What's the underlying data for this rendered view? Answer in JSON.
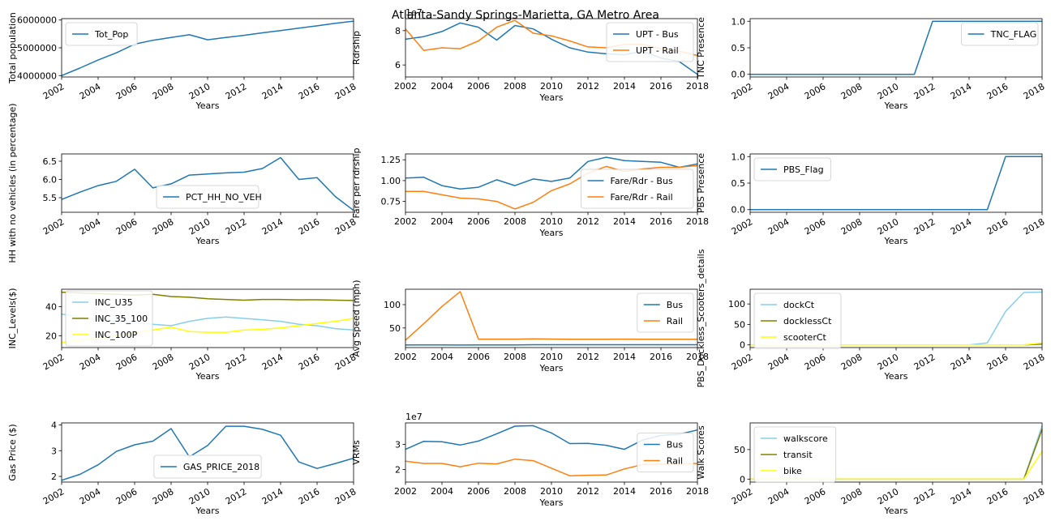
{
  "figure": {
    "title": "Atlanta-Sandy Springs-Marietta, GA Metro Area"
  },
  "chart_data": [
    {
      "id": "p1",
      "type": "line",
      "xlabel": "Years",
      "ylabel": "Total population",
      "xlim": [
        2002,
        2018
      ],
      "ylim": [
        3950000,
        6050000
      ],
      "xticks": [
        2002,
        2004,
        2006,
        2008,
        2010,
        2012,
        2014,
        2016,
        2018
      ],
      "xtick_rotate": true,
      "yticks": [
        4000000,
        5000000,
        6000000
      ],
      "ytick_labels": [
        "4000000",
        "5000000",
        "6000000"
      ],
      "exponent": "",
      "legend": "upper left",
      "x": [
        2002,
        2003,
        2004,
        2005,
        2006,
        2007,
        2008,
        2009,
        2010,
        2011,
        2012,
        2013,
        2014,
        2015,
        2016,
        2017,
        2018
      ],
      "series": [
        {
          "name": "Tot_Pop",
          "color": "#1f77b4",
          "values": [
            4000000,
            4270000,
            4560000,
            4820000,
            5130000,
            5270000,
            5370000,
            5470000,
            5290000,
            5370000,
            5450000,
            5540000,
            5620000,
            5710000,
            5790000,
            5880000,
            5960000
          ]
        }
      ]
    },
    {
      "id": "p2",
      "type": "line",
      "xlabel": "Years",
      "ylabel": "Rdrship",
      "xlim": [
        2002,
        2018
      ],
      "ylim": [
        5.3,
        8.7
      ],
      "xticks": [
        2002,
        2004,
        2006,
        2008,
        2010,
        2012,
        2014,
        2016,
        2018
      ],
      "xtick_rotate": false,
      "yticks": [
        6,
        8
      ],
      "ytick_labels": [
        "6",
        "8"
      ],
      "exponent": "1e7",
      "legend": "upper right",
      "x": [
        2002,
        2003,
        2004,
        2005,
        2006,
        2007,
        2008,
        2009,
        2010,
        2011,
        2012,
        2013,
        2014,
        2015,
        2016,
        2017,
        2018
      ],
      "series": [
        {
          "name": "UPT - Bus",
          "color": "#1f77b4",
          "values": [
            7.5,
            7.65,
            7.95,
            8.45,
            8.2,
            7.45,
            8.3,
            8.1,
            7.5,
            7.0,
            6.75,
            6.65,
            6.6,
            6.8,
            6.4,
            6.2,
            5.45
          ]
        },
        {
          "name": "UPT - Rail",
          "color": "#ff7f0e",
          "values": [
            8.1,
            6.85,
            7.0,
            6.95,
            7.4,
            8.2,
            8.6,
            7.85,
            7.7,
            7.4,
            7.05,
            7.0,
            7.2,
            7.2,
            6.95,
            6.8,
            6.55
          ]
        }
      ]
    },
    {
      "id": "p3",
      "type": "line",
      "xlabel": "Years",
      "ylabel": "TNC Presence",
      "xlim": [
        2002,
        2018
      ],
      "ylim": [
        -0.05,
        1.05
      ],
      "xticks": [
        2002,
        2004,
        2006,
        2008,
        2010,
        2012,
        2014,
        2016,
        2018
      ],
      "xtick_rotate": true,
      "yticks": [
        0,
        0.5,
        1.0
      ],
      "ytick_labels": [
        "0.0",
        "0.5",
        "1.0"
      ],
      "exponent": "",
      "legend": "upper right",
      "x": [
        2002,
        2003,
        2004,
        2005,
        2006,
        2007,
        2008,
        2009,
        2010,
        2011,
        2012,
        2013,
        2014,
        2015,
        2016,
        2017,
        2018
      ],
      "series": [
        {
          "name": "TNC_FLAG",
          "color": "#1f77b4",
          "values": [
            0,
            0,
            0,
            0,
            0,
            0,
            0,
            0,
            0,
            0,
            1,
            1,
            1,
            1,
            1,
            1,
            1
          ]
        }
      ]
    },
    {
      "id": "p4",
      "type": "line",
      "xlabel": "Years",
      "ylabel": "HH with no vehicles (in percentage)",
      "xlim": [
        2002,
        2018
      ],
      "ylim": [
        5.1,
        6.7
      ],
      "xticks": [
        2002,
        2004,
        2006,
        2008,
        2010,
        2012,
        2014,
        2016,
        2018
      ],
      "xtick_rotate": true,
      "yticks": [
        5.5,
        6.0,
        6.5
      ],
      "ytick_labels": [
        "5.5",
        "6.0",
        "6.5"
      ],
      "exponent": "",
      "legend": "lower center",
      "x": [
        2002,
        2003,
        2004,
        2005,
        2006,
        2007,
        2008,
        2009,
        2010,
        2011,
        2012,
        2013,
        2014,
        2015,
        2016,
        2017,
        2018
      ],
      "series": [
        {
          "name": "PCT_HH_NO_VEH",
          "color": "#1f77b4",
          "values": [
            5.45,
            5.65,
            5.83,
            5.95,
            6.28,
            5.77,
            5.88,
            6.12,
            6.15,
            6.18,
            6.2,
            6.3,
            6.6,
            6.0,
            6.05,
            5.53,
            5.15
          ]
        }
      ]
    },
    {
      "id": "p5",
      "type": "line",
      "xlabel": "Years",
      "ylabel": "Fare per rdrship",
      "xlim": [
        2002,
        2018
      ],
      "ylim": [
        0.62,
        1.32
      ],
      "xticks": [
        2002,
        2004,
        2006,
        2008,
        2010,
        2012,
        2014,
        2016,
        2018
      ],
      "xtick_rotate": false,
      "yticks": [
        0.75,
        1.0,
        1.25
      ],
      "ytick_labels": [
        "0.75",
        "1.00",
        "1.25"
      ],
      "exponent": "",
      "legend": "lower right",
      "x": [
        2002,
        2003,
        2004,
        2005,
        2006,
        2007,
        2008,
        2009,
        2010,
        2011,
        2012,
        2013,
        2014,
        2015,
        2016,
        2017,
        2018
      ],
      "series": [
        {
          "name": "Fare/Rdr - Bus",
          "color": "#1f77b4",
          "values": [
            1.03,
            1.04,
            0.94,
            0.9,
            0.92,
            1.01,
            0.94,
            1.02,
            0.99,
            1.03,
            1.23,
            1.28,
            1.24,
            1.23,
            1.22,
            1.16,
            1.2
          ]
        },
        {
          "name": "Fare/Rdr - Rail",
          "color": "#ff7f0e",
          "values": [
            0.87,
            0.87,
            0.83,
            0.79,
            0.78,
            0.75,
            0.66,
            0.74,
            0.88,
            0.96,
            1.09,
            1.17,
            1.11,
            1.14,
            1.16,
            1.16,
            1.18
          ]
        }
      ]
    },
    {
      "id": "p6",
      "type": "line",
      "xlabel": "Years",
      "ylabel": "PBS Presence",
      "xlim": [
        2002,
        2018
      ],
      "ylim": [
        -0.05,
        1.05
      ],
      "xticks": [
        2002,
        2004,
        2006,
        2008,
        2010,
        2012,
        2014,
        2016,
        2018
      ],
      "xtick_rotate": true,
      "yticks": [
        0,
        0.5,
        1.0
      ],
      "ytick_labels": [
        "0.0",
        "0.5",
        "1.0"
      ],
      "exponent": "",
      "legend": "upper left",
      "x": [
        2002,
        2003,
        2004,
        2005,
        2006,
        2007,
        2008,
        2009,
        2010,
        2011,
        2012,
        2013,
        2014,
        2015,
        2016,
        2017,
        2018
      ],
      "series": [
        {
          "name": "PBS_Flag",
          "color": "#1f77b4",
          "values": [
            0,
            0,
            0,
            0,
            0,
            0,
            0,
            0,
            0,
            0,
            0,
            0,
            0,
            0,
            1,
            1,
            1
          ]
        }
      ]
    },
    {
      "id": "p7",
      "type": "line",
      "xlabel": "Years",
      "ylabel": "INC_Levels($)",
      "xlim": [
        2002,
        2018
      ],
      "ylim": [
        12,
        52
      ],
      "xticks": [
        2002,
        2004,
        2006,
        2008,
        2010,
        2012,
        2014,
        2016,
        2018
      ],
      "xtick_rotate": true,
      "yticks": [
        20,
        40
      ],
      "ytick_labels": [
        "20",
        "40"
      ],
      "exponent": "",
      "legend": "center left",
      "x": [
        2002,
        2003,
        2004,
        2005,
        2006,
        2007,
        2008,
        2009,
        2010,
        2011,
        2012,
        2013,
        2014,
        2015,
        2016,
        2017,
        2018
      ],
      "series": [
        {
          "name": "INC_U35",
          "color": "#87ceeb",
          "values": [
            35,
            33,
            31,
            30,
            29,
            28,
            27,
            30,
            32,
            33,
            32,
            31,
            30,
            28,
            27,
            25,
            24
          ]
        },
        {
          "name": "INC_35_100",
          "color": "#808000",
          "values": [
            50,
            49.5,
            49,
            48.5,
            48,
            48.5,
            47,
            46.5,
            45.5,
            45,
            44.5,
            45,
            45,
            44.7,
            44.8,
            44.5,
            44.3
          ]
        },
        {
          "name": "INC_100P",
          "color": "#ffff00",
          "values": [
            15.5,
            17,
            18.5,
            20,
            22,
            24,
            26,
            23,
            22.5,
            22.5,
            24,
            24.5,
            25.5,
            27,
            28.5,
            30,
            32
          ]
        }
      ]
    },
    {
      "id": "p8",
      "type": "line",
      "xlabel": "Years",
      "ylabel": "Avg Speed (mph)",
      "xlim": [
        2002,
        2018
      ],
      "ylim": [
        8,
        133
      ],
      "xticks": [
        2002,
        2004,
        2006,
        2008,
        2010,
        2012,
        2014,
        2016,
        2018
      ],
      "xtick_rotate": false,
      "yticks": [
        50,
        100
      ],
      "ytick_labels": [
        "50",
        "100"
      ],
      "exponent": "",
      "legend": "upper right",
      "x": [
        2002,
        2003,
        2004,
        2005,
        2006,
        2007,
        2008,
        2009,
        2010,
        2011,
        2012,
        2013,
        2014,
        2015,
        2016,
        2017,
        2018
      ],
      "series": [
        {
          "name": "Bus",
          "color": "#1f77b4",
          "values": [
            13.5,
            13.5,
            13.5,
            13.3,
            13.5,
            13.8,
            13.8,
            14,
            14,
            14,
            14,
            14,
            14,
            14,
            14,
            14,
            14
          ]
        },
        {
          "name": "Rail",
          "color": "#ff7f0e",
          "values": [
            24,
            59,
            96,
            128,
            26,
            26,
            26,
            26.5,
            26.2,
            25.8,
            25.7,
            25.8,
            26,
            25.8,
            25.8,
            25.8,
            25.8
          ]
        }
      ]
    },
    {
      "id": "p9",
      "type": "line",
      "xlabel": "Years",
      "ylabel": "PBS_Dockless_Scooters_details",
      "xlim": [
        2002,
        2018
      ],
      "ylim": [
        -6.5,
        136
      ],
      "xticks": [
        2002,
        2004,
        2006,
        2008,
        2010,
        2012,
        2014,
        2016,
        2018
      ],
      "xtick_rotate": true,
      "yticks": [
        0,
        50,
        100
      ],
      "ytick_labels": [
        "0",
        "50",
        "100"
      ],
      "exponent": "",
      "legend": "upper left",
      "x": [
        2002,
        2003,
        2004,
        2005,
        2006,
        2007,
        2008,
        2009,
        2010,
        2011,
        2012,
        2013,
        2014,
        2015,
        2016,
        2017,
        2018
      ],
      "series": [
        {
          "name": "dockCt",
          "color": "#87ceeb",
          "values": [
            0,
            0,
            0,
            0,
            0,
            0,
            0,
            0,
            0,
            0,
            0,
            0,
            0,
            5,
            82,
            128,
            129
          ]
        },
        {
          "name": "docklessCt",
          "color": "#808000",
          "values": [
            0,
            0,
            0,
            0,
            0,
            0,
            0,
            0,
            0,
            0,
            0,
            0,
            0,
            0,
            0,
            0,
            2
          ]
        },
        {
          "name": "scooterCt",
          "color": "#ffff00",
          "values": [
            0,
            0,
            0,
            0,
            0,
            0,
            0,
            0,
            0,
            0,
            0,
            0,
            0,
            0,
            0,
            0,
            5
          ]
        }
      ]
    },
    {
      "id": "p10",
      "type": "line",
      "xlabel": "Years",
      "ylabel": "Gas Price ($)",
      "xlim": [
        2002,
        2018
      ],
      "ylim": [
        1.78,
        4.08
      ],
      "xticks": [
        2002,
        2004,
        2006,
        2008,
        2010,
        2012,
        2014,
        2016,
        2018
      ],
      "xtick_rotate": true,
      "yticks": [
        2,
        3,
        4
      ],
      "ytick_labels": [
        "2",
        "3",
        "4"
      ],
      "exponent": "",
      "legend": "lower center",
      "x": [
        2002,
        2003,
        2004,
        2005,
        2006,
        2007,
        2008,
        2009,
        2010,
        2011,
        2012,
        2013,
        2014,
        2015,
        2016,
        2017,
        2018
      ],
      "series": [
        {
          "name": "GAS_PRICE_2018",
          "color": "#1f77b4",
          "values": [
            1.85,
            2.08,
            2.45,
            2.97,
            3.23,
            3.37,
            3.86,
            2.76,
            3.2,
            3.95,
            3.95,
            3.83,
            3.6,
            2.56,
            2.31,
            2.5,
            2.71
          ]
        }
      ]
    },
    {
      "id": "p11",
      "type": "line",
      "xlabel": "Years",
      "ylabel": "VRMs",
      "xlim": [
        2002,
        2018
      ],
      "ylim": [
        1.5,
        3.85
      ],
      "xticks": [
        2002,
        2004,
        2006,
        2008,
        2010,
        2012,
        2014,
        2016,
        2018
      ],
      "xtick_rotate": false,
      "yticks": [
        2,
        3
      ],
      "ytick_labels": [
        "2",
        "3"
      ],
      "exponent": "1e7",
      "legend": "center right",
      "x": [
        2002,
        2003,
        2004,
        2005,
        2006,
        2007,
        2008,
        2009,
        2010,
        2011,
        2012,
        2013,
        2014,
        2015,
        2016,
        2017,
        2018
      ],
      "series": [
        {
          "name": "Bus",
          "color": "#1f77b4",
          "values": [
            2.8,
            3.12,
            3.1,
            2.97,
            3.13,
            3.42,
            3.72,
            3.74,
            3.45,
            3.03,
            3.04,
            2.96,
            2.8,
            3.17,
            3.35,
            3.4,
            3.57
          ]
        },
        {
          "name": "Rail",
          "color": "#ff7f0e",
          "values": [
            2.33,
            2.24,
            2.24,
            2.11,
            2.25,
            2.22,
            2.41,
            2.35,
            2.05,
            1.75,
            1.77,
            1.78,
            2.02,
            2.2,
            2.22,
            2.22,
            2.24
          ]
        }
      ]
    },
    {
      "id": "p12",
      "type": "line",
      "xlabel": "Years",
      "ylabel": "Walk Scores",
      "xlim": [
        2002,
        2018
      ],
      "ylim": [
        -5,
        95
      ],
      "xticks": [
        2002,
        2004,
        2006,
        2008,
        2010,
        2012,
        2014,
        2016,
        2018
      ],
      "xtick_rotate": true,
      "yticks": [
        0,
        50
      ],
      "ytick_labels": [
        "0",
        "50"
      ],
      "exponent": "",
      "legend": "upper left",
      "x": [
        2002,
        2003,
        2004,
        2005,
        2006,
        2007,
        2008,
        2009,
        2010,
        2011,
        2012,
        2013,
        2014,
        2015,
        2016,
        2017,
        2018
      ],
      "series": [
        {
          "name": "walkscore",
          "color": "#87ceeb",
          "values": [
            0,
            0,
            0,
            0,
            0,
            0,
            0,
            0,
            0,
            0,
            0,
            0,
            0,
            0,
            0,
            0,
            90
          ]
        },
        {
          "name": "transit",
          "color": "#808000",
          "values": [
            0,
            0,
            0,
            0,
            0,
            0,
            0,
            0,
            0,
            0,
            0,
            0,
            0,
            0,
            0,
            0,
            84
          ]
        },
        {
          "name": "bike",
          "color": "#ffff00",
          "values": [
            0,
            0,
            0,
            0,
            0,
            0,
            0,
            0,
            0,
            0,
            0,
            0,
            0,
            0,
            0,
            0,
            47
          ]
        }
      ]
    }
  ]
}
